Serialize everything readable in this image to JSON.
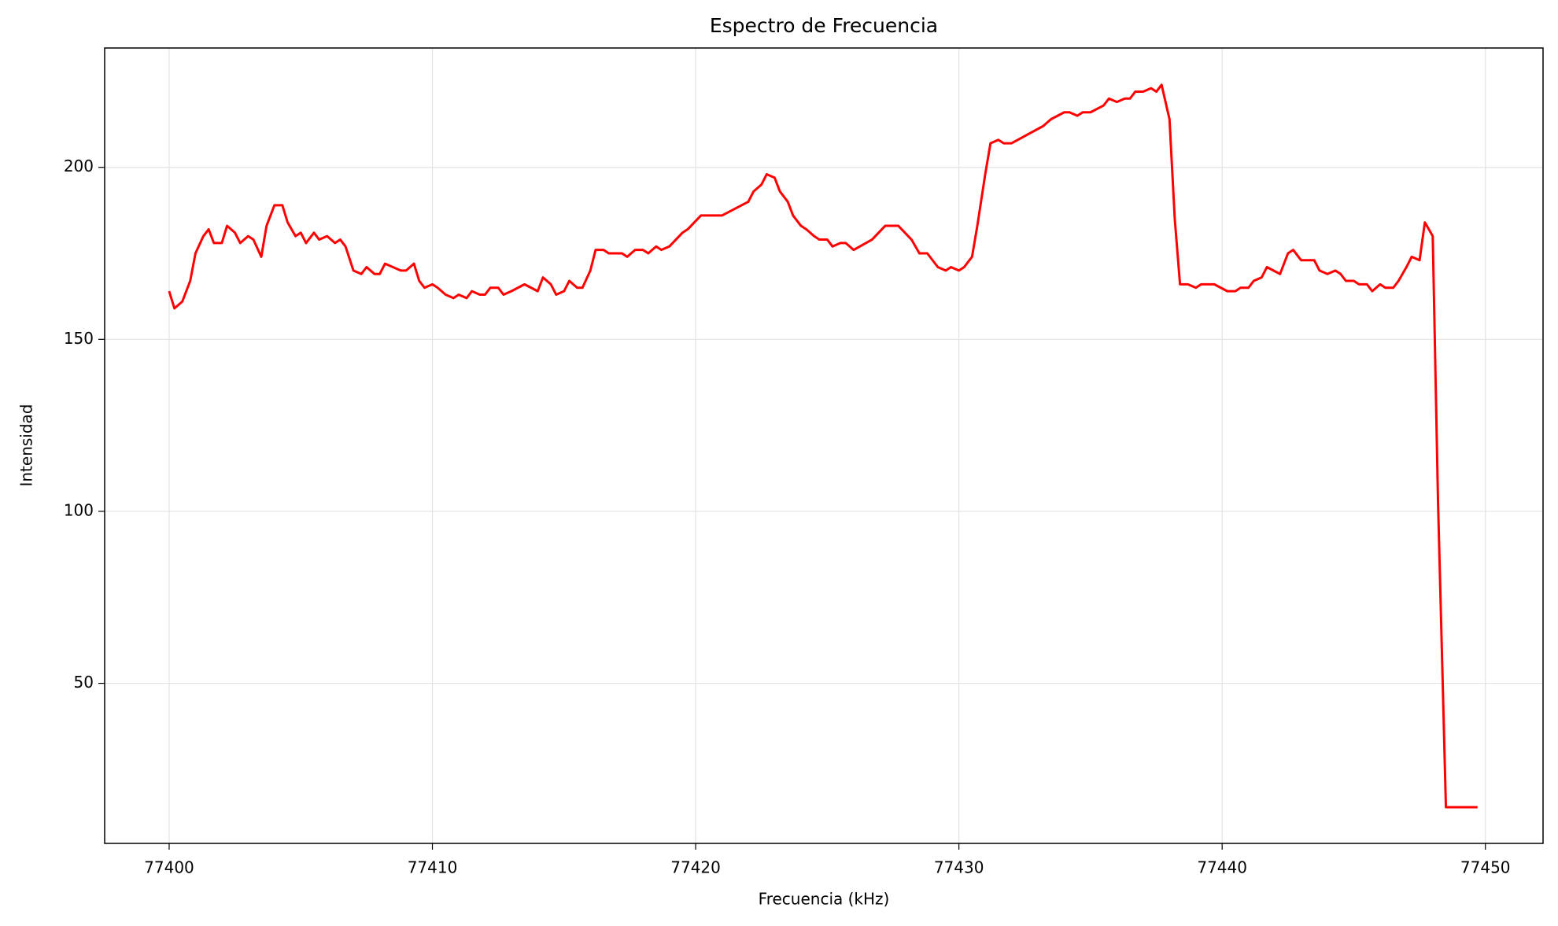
{
  "chart_data": {
    "type": "line",
    "title": "Espectro de Frecuencia",
    "x_label": "Frecuencia (kHz)",
    "y_label": "Intensidad",
    "xlim": [
      77397.55,
      77452.19
    ],
    "ylim": [
      3.47,
      234.7
    ],
    "xticks": [
      77400,
      77410,
      77420,
      77430,
      77440,
      77450
    ],
    "yticks": [
      50,
      100,
      150,
      200
    ],
    "grid": true,
    "series": [
      {
        "name": "Intensidad",
        "color": "#ff0000",
        "x": [
          77400,
          77400.2,
          77400.5,
          77400.8,
          77401.0,
          77401.3,
          77401.5,
          77401.7,
          77402.0,
          77402.2,
          77402.5,
          77402.7,
          77403.0,
          77403.2,
          77403.5,
          77403.7,
          77404.0,
          77404.3,
          77404.5,
          77404.8,
          77405.0,
          77405.2,
          77405.5,
          77405.7,
          77406.0,
          77406.3,
          77406.5,
          77406.7,
          77407.0,
          77407.3,
          77407.5,
          77407.8,
          77408.0,
          77408.2,
          77408.5,
          77408.8,
          77409.0,
          77409.3,
          77409.5,
          77409.7,
          77410.0,
          77410.2,
          77410.5,
          77410.8,
          77411.0,
          77411.3,
          77411.5,
          77411.8,
          77412.0,
          77412.2,
          77412.5,
          77412.7,
          77413.0,
          77413.5,
          77414.0,
          77414.2,
          77414.5,
          77414.7,
          77415.0,
          77415.2,
          77415.5,
          77415.7,
          77416.0,
          77416.2,
          77416.5,
          77416.7,
          77417.2,
          77417.4,
          77417.7,
          77418.0,
          77418.2,
          77418.5,
          77418.7,
          77419.0,
          77419.5,
          77419.7,
          77420.2,
          77421.0,
          77422.0,
          77422.2,
          77422.5,
          77422.7,
          77423.0,
          77423.2,
          77423.5,
          77423.7,
          77424.0,
          77424.2,
          77424.5,
          77424.7,
          77425.0,
          77425.2,
          77425.5,
          77425.7,
          77426.0,
          77426.7,
          77427.2,
          77427.7,
          77428.2,
          77428.5,
          77428.8,
          77429.2,
          77429.5,
          77429.7,
          77430.0,
          77430.2,
          77430.5,
          77430.7,
          77431.0,
          77431.2,
          77431.5,
          77431.7,
          77432.0,
          77433.2,
          77433.5,
          77434.0,
          77434.2,
          77434.5,
          77434.7,
          77435.0,
          77435.5,
          77435.7,
          77436.0,
          77436.3,
          77436.5,
          77436.7,
          77437.0,
          77437.3,
          77437.5,
          77437.7,
          77438.0,
          77438.2,
          77438.4,
          77438.7,
          77439.0,
          77439.2,
          77439.7,
          77440.2,
          77440.5,
          77440.7,
          77441.0,
          77441.2,
          77441.5,
          77441.7,
          77442.2,
          77442.5,
          77442.7,
          77443.0,
          77443.5,
          77443.7,
          77444.0,
          77444.3,
          77444.5,
          77444.7,
          77445.0,
          77445.2,
          77445.5,
          77445.7,
          77446.0,
          77446.2,
          77446.5,
          77446.7,
          77447.0,
          77447.2,
          77447.5,
          77447.7,
          77448.0,
          77448.2,
          77448.5,
          77449.7
        ],
        "values": [
          164,
          159,
          161,
          167,
          175,
          180,
          182,
          178,
          178,
          183,
          181,
          178,
          180,
          179,
          174,
          183,
          189,
          189,
          184,
          180,
          181,
          178,
          181,
          179,
          180,
          178,
          179,
          177,
          170,
          169,
          171,
          169,
          169,
          172,
          171,
          170,
          170,
          172,
          167,
          165,
          166,
          165,
          163,
          162,
          163,
          162,
          164,
          163,
          163,
          165,
          165,
          163,
          164,
          166,
          164,
          168,
          166,
          163,
          164,
          167,
          165,
          165,
          170,
          176,
          176,
          175,
          175,
          174,
          176,
          176,
          175,
          177,
          176,
          177,
          181,
          182,
          186,
          186,
          190,
          193,
          195,
          198,
          197,
          193,
          190,
          186,
          183,
          182,
          180,
          179,
          179,
          177,
          178,
          178,
          176,
          179,
          183,
          183,
          179,
          175,
          175,
          171,
          170,
          171,
          170,
          171,
          174,
          183,
          198,
          207,
          208,
          207,
          207,
          212,
          214,
          216,
          216,
          215,
          216,
          216,
          218,
          220,
          219,
          220,
          220,
          222,
          222,
          223,
          222,
          224,
          214,
          185,
          166,
          166,
          165,
          166,
          166,
          164,
          164,
          165,
          165,
          167,
          168,
          171,
          169,
          175,
          176,
          173,
          173,
          170,
          169,
          170,
          169,
          167,
          167,
          166,
          166,
          164,
          166,
          165,
          165,
          167,
          171,
          174,
          173,
          184,
          180,
          103,
          14,
          14
        ]
      }
    ]
  }
}
